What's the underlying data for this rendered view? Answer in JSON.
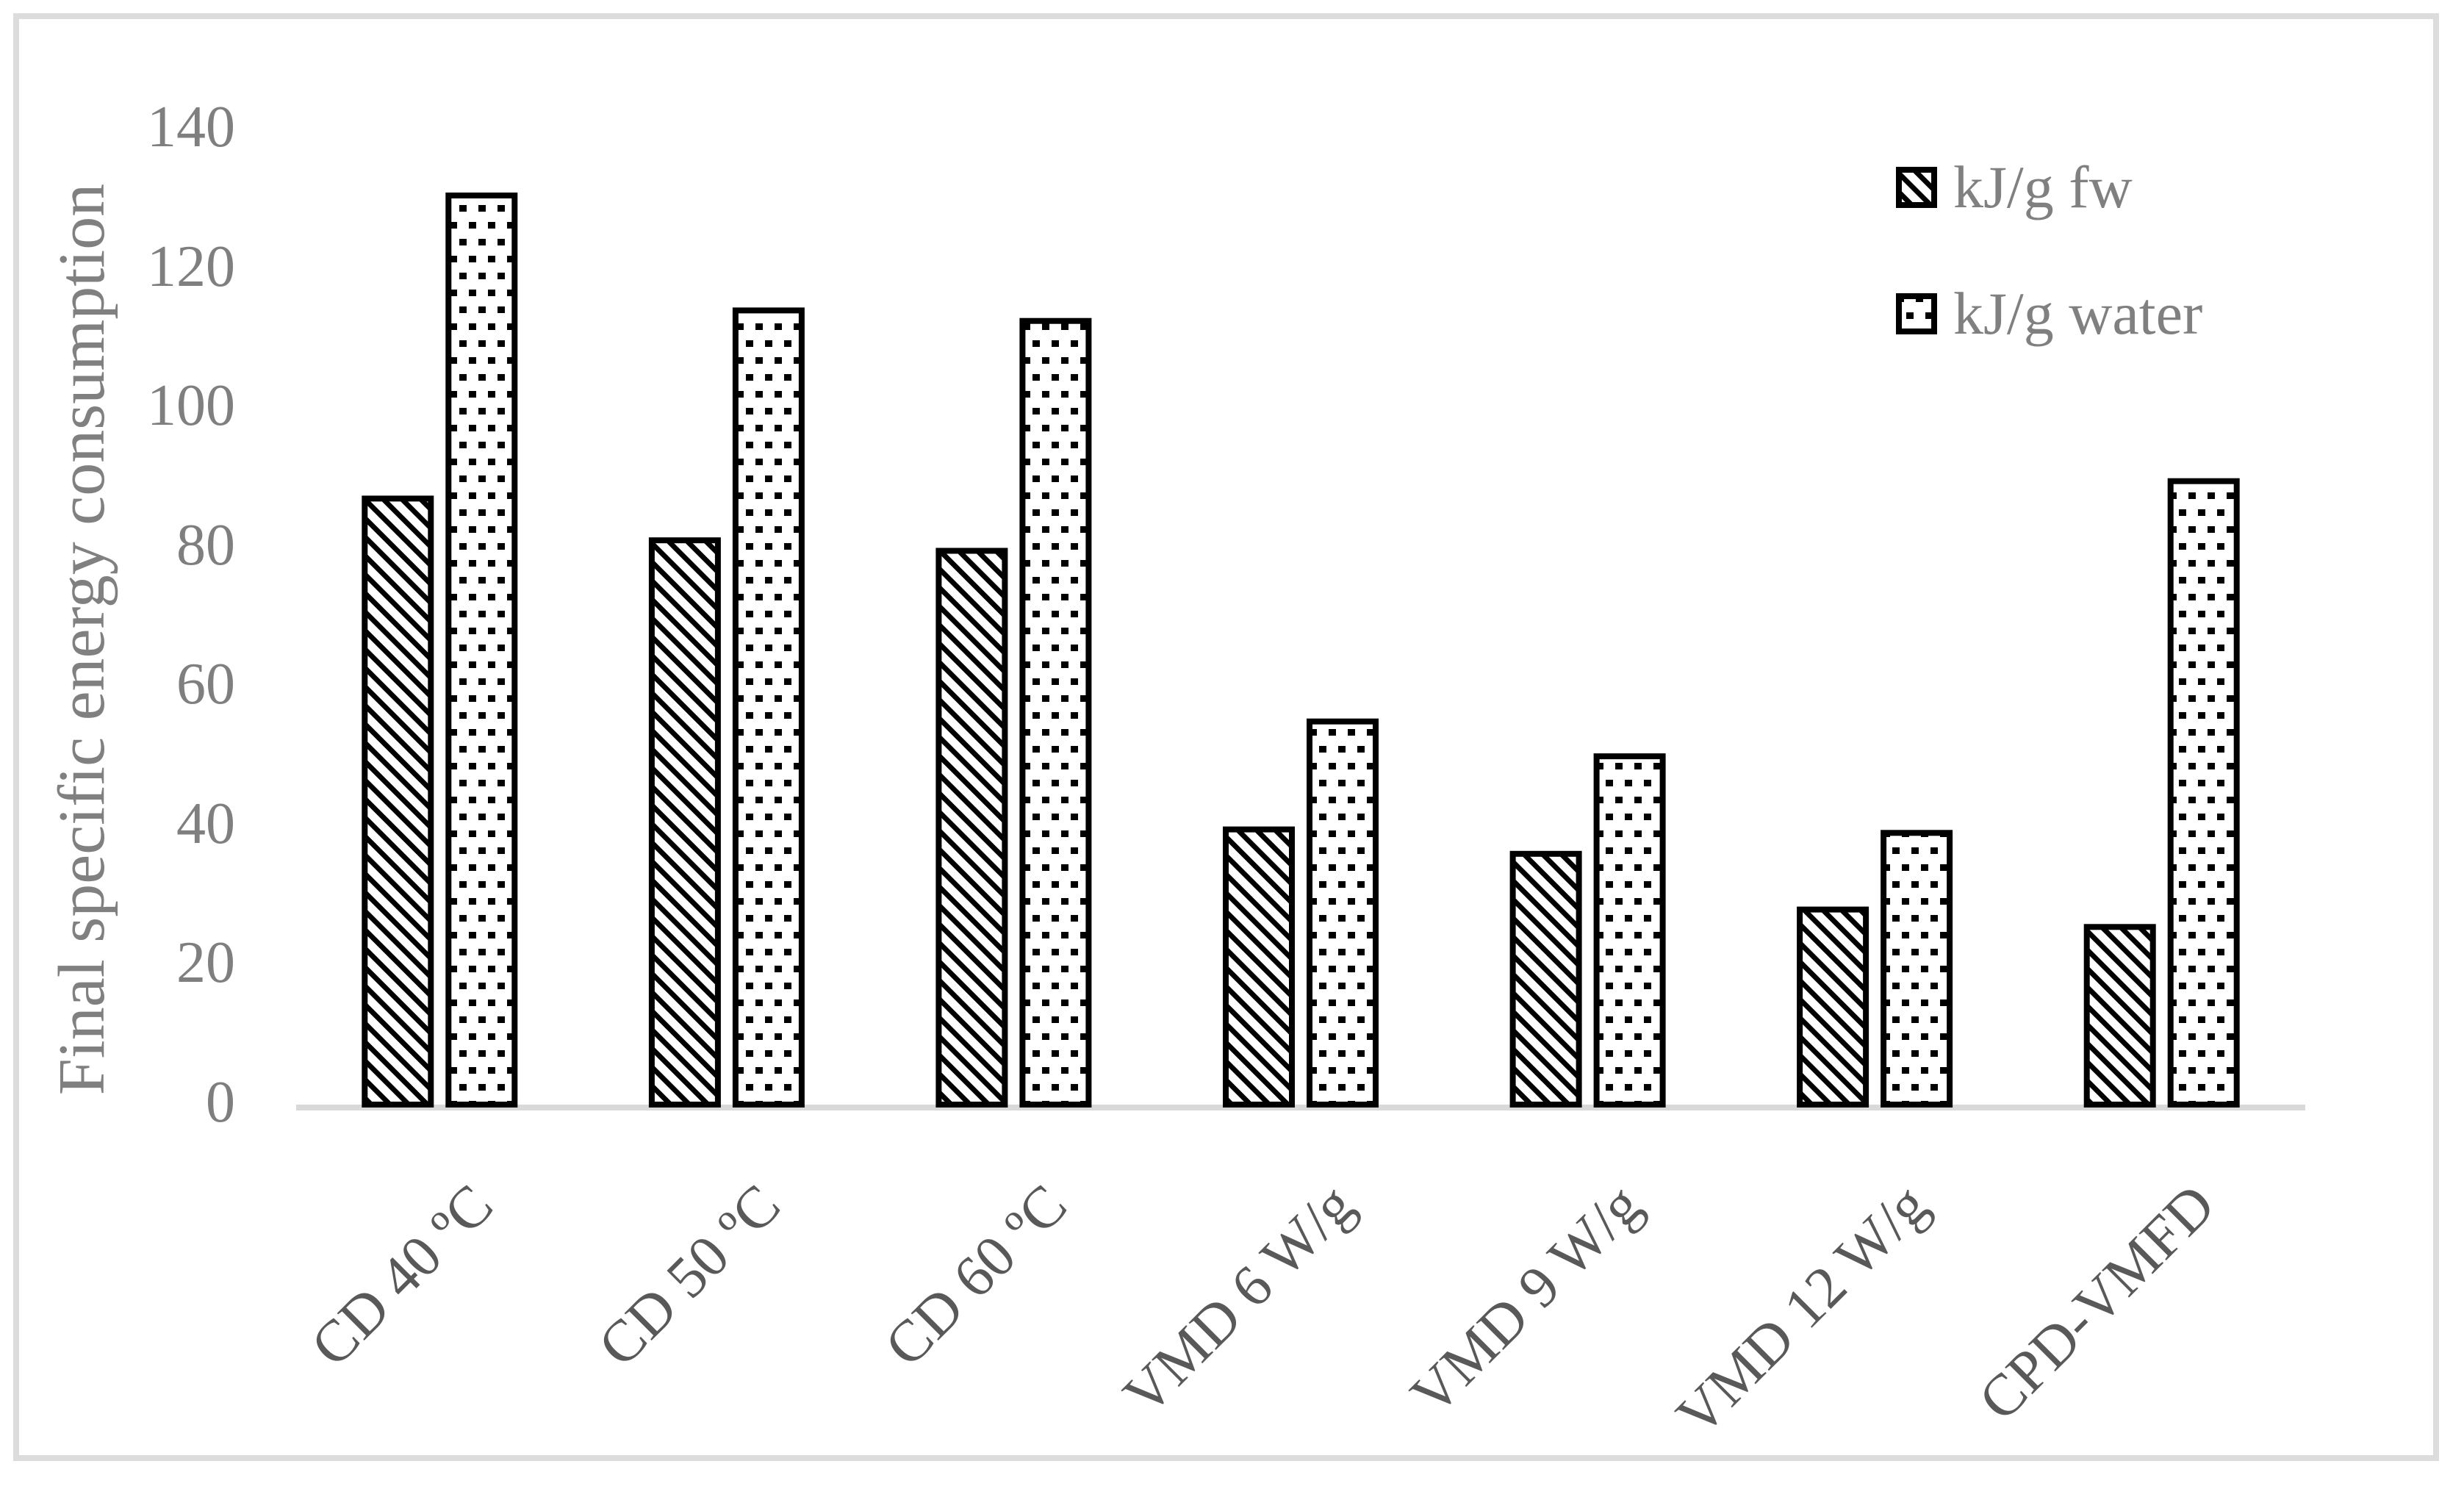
{
  "chart_data": {
    "type": "bar",
    "title": "",
    "ylabel": "Final specific energy consumption",
    "xlabel": "",
    "categories": [
      "CD 40 ºC",
      "CD 50 ºC",
      "CD 60 ºC",
      "VMD 6 W/g",
      "VMD 9 W/g",
      "VMD 12 W/g",
      "CPD-VMFD"
    ],
    "series": [
      {
        "name": "kJ/g fw",
        "pattern": "diagonal-hatch",
        "values": [
          87,
          81,
          79.5,
          39.5,
          36,
          28,
          25.5
        ]
      },
      {
        "name": "kJ/g water",
        "pattern": "dot-grid",
        "values": [
          130.5,
          114,
          112.5,
          55,
          50,
          39,
          89.5
        ]
      }
    ],
    "ylim": [
      0,
      140
    ],
    "yticks": [
      0,
      20,
      40,
      60,
      80,
      100,
      120,
      140
    ],
    "grid": false,
    "legend_position": "top-right",
    "colors": {
      "bar_fill": "#ffffff",
      "bar_border": "#000000",
      "axis_line": "#d9d9d9",
      "frame": "#dcdcdc",
      "tick_label": "#7f7f7f",
      "y_title": "#808080",
      "category_label": "#595959",
      "legend_text": "#808080"
    },
    "category_label_rotation_deg": -45
  }
}
